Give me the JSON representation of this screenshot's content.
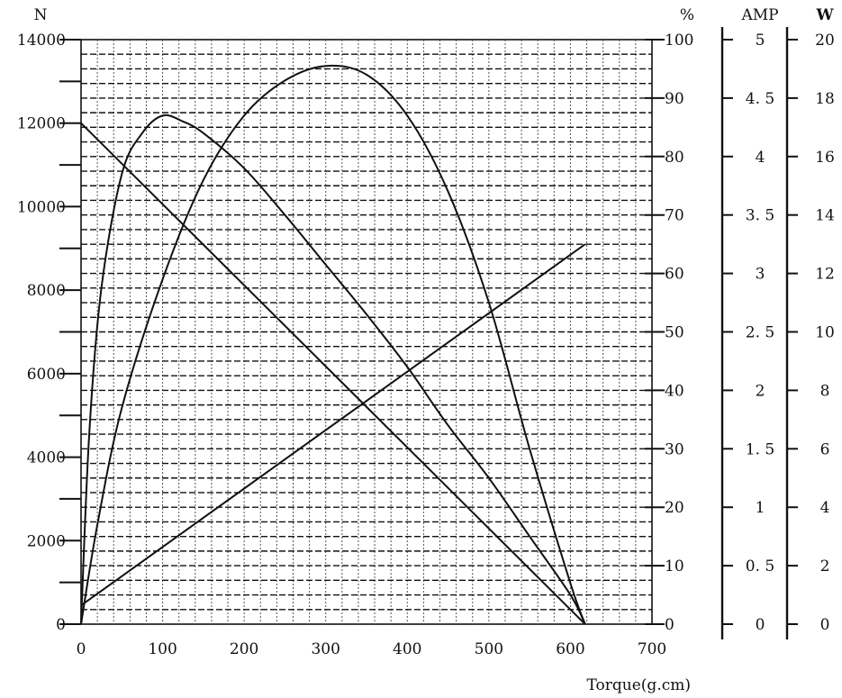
{
  "chart_data": {
    "type": "line",
    "xlabel": "Torque(g.cm)",
    "xlim": [
      0,
      700
    ],
    "x_ticks": [
      "0",
      "100",
      "200",
      "300",
      "400",
      "500",
      "600",
      "700"
    ],
    "axes": {
      "speed": {
        "unit": "N",
        "range": [
          0,
          14000
        ],
        "ticks": [
          "0",
          "2000",
          "4000",
          "6000",
          "8000",
          "10000",
          "12000",
          "14000"
        ]
      },
      "efficiency": {
        "unit": "%",
        "range": [
          0,
          100
        ],
        "ticks": [
          "0",
          "10",
          "20",
          "30",
          "40",
          "50",
          "60",
          "70",
          "80",
          "90",
          "100"
        ]
      },
      "current": {
        "unit": "AMP",
        "range": [
          0,
          5
        ],
        "ticks": [
          "0",
          "0. 5",
          "1",
          "1. 5",
          "2",
          "2. 5",
          "3",
          "3. 5",
          "4",
          "4. 5",
          "5"
        ]
      },
      "power": {
        "unit": "W",
        "range": [
          0,
          20
        ],
        "ticks": [
          "0",
          "2",
          "4",
          "6",
          "8",
          "10",
          "12",
          "14",
          "16",
          "18",
          "20"
        ]
      }
    },
    "grid": true,
    "series": [
      {
        "axis": "speed",
        "x": [
          0,
          618
        ],
        "y": [
          12000,
          0
        ]
      },
      {
        "axis": "current",
        "x": [
          0,
          618
        ],
        "y": [
          0.16,
          3.25
        ]
      },
      {
        "axis": "efficiency",
        "x": [
          0,
          20,
          50,
          100,
          150,
          200,
          250,
          300,
          350,
          400,
          450,
          500,
          550,
          600,
          618
        ],
        "y": [
          0,
          17,
          37,
          59,
          76,
          87,
          93,
          95.5,
          94,
          87,
          74,
          55,
          30,
          7,
          0
        ]
      },
      {
        "axis": "power",
        "x": [
          0,
          10,
          25,
          50,
          75,
          100,
          125,
          150,
          200,
          250,
          300,
          350,
          400,
          450,
          500,
          550,
          600,
          618
        ],
        "y": [
          0,
          6.5,
          11.5,
          15.4,
          16.8,
          17.4,
          17.2,
          16.8,
          15.6,
          14,
          12.3,
          10.6,
          8.8,
          6.8,
          5,
          3,
          1,
          0
        ]
      }
    ]
  }
}
